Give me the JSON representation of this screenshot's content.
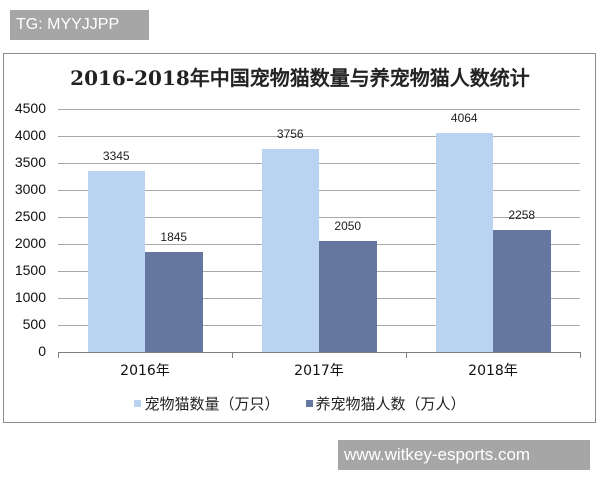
{
  "watermark_top": "TG: MYYJJPP",
  "watermark_bottom": "www.witkey-esports.com",
  "colors": {
    "series1": "#b9d3f0",
    "series2": "#66779f",
    "grid": "#a8a8a8",
    "badge_bg": "#a6a6a6"
  },
  "chart_data": {
    "type": "bar",
    "title": "2016-2018年中国宠物猫数量与养宠物猫人数统计",
    "xlabel": "",
    "ylabel": "",
    "categories": [
      "2016年",
      "2017年",
      "2018年"
    ],
    "series": [
      {
        "name": "宠物猫数量（万只）",
        "values": [
          3345,
          3756,
          4064
        ],
        "color": "#b9d3f0"
      },
      {
        "name": "养宠物猫人数（万人）",
        "values": [
          1845,
          2050,
          2258
        ],
        "color": "#66779f"
      }
    ],
    "ylim": [
      0,
      4500
    ],
    "yticks": [
      0,
      500,
      1000,
      1500,
      2000,
      2500,
      3000,
      3500,
      4000,
      4500
    ],
    "grid": true,
    "data_labels": true,
    "legend_position": "bottom"
  }
}
